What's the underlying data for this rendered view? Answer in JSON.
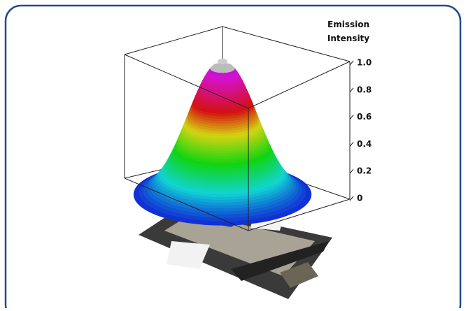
{
  "chart_data": {
    "type": "surface3d",
    "axis_label": "Emission Intensity",
    "zlim": [
      0,
      1
    ],
    "zticks": [
      0,
      0.2,
      0.4,
      0.6,
      0.8,
      {
        "value": 1,
        "label": "1.0"
      }
    ],
    "values": [
      1
    ]
  }
}
